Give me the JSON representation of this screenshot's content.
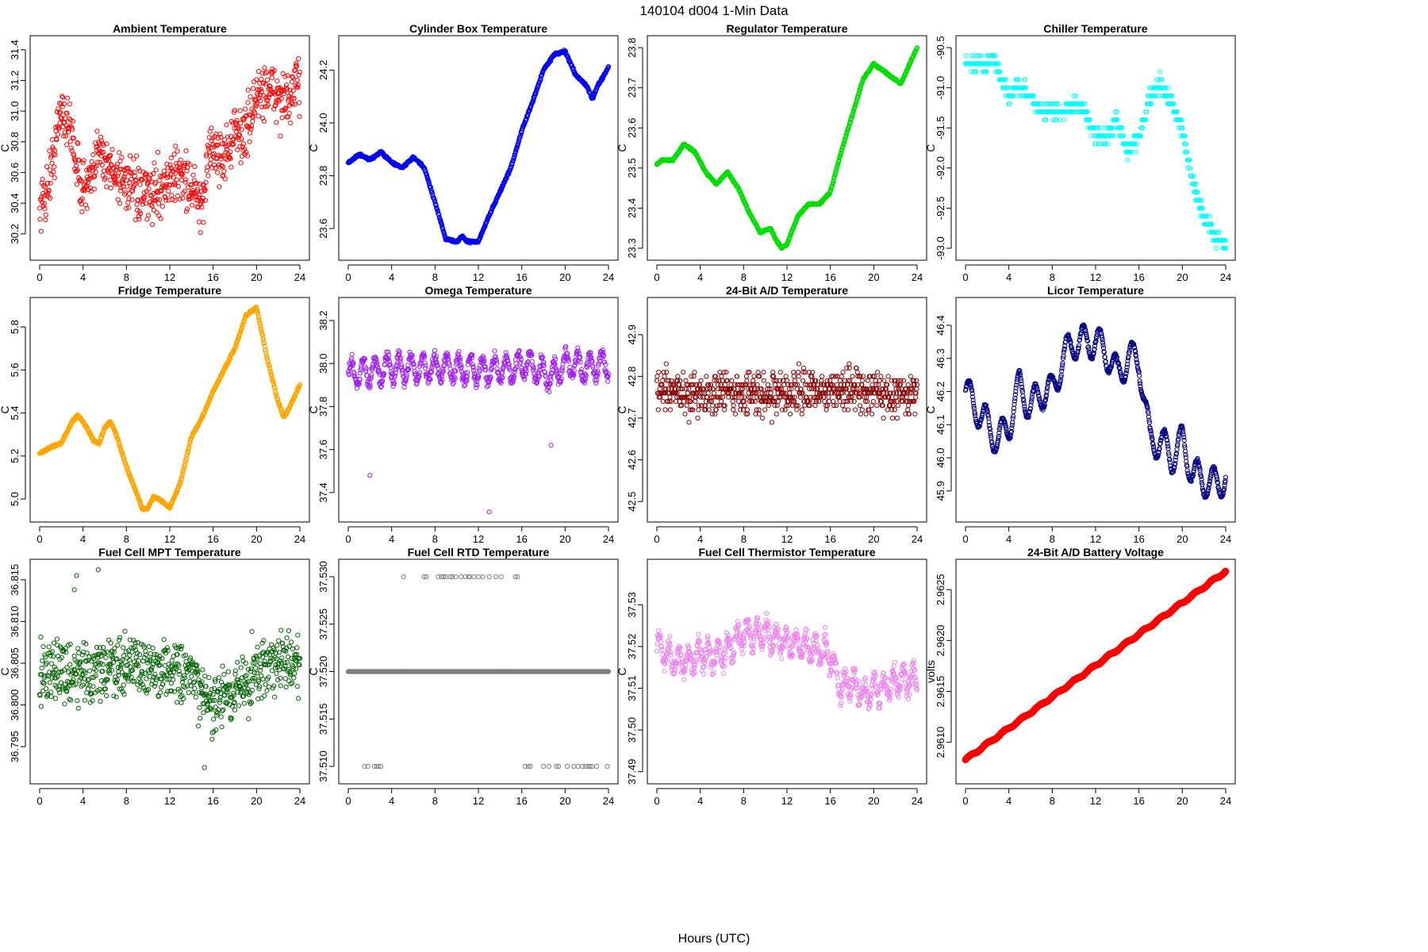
{
  "figure": {
    "title": "140104   d004   1-Min Data",
    "xlabel": "Hours (UTC)"
  },
  "chart_data": [
    {
      "type": "scatter",
      "title": "Ambient Temperature",
      "ylabel": "C",
      "color": "#ff0000",
      "xlim": [
        0,
        24
      ],
      "ylim": [
        30.08,
        31.44
      ],
      "xticks": [
        0,
        4,
        8,
        12,
        16,
        20,
        24
      ],
      "yticks": [
        30.2,
        30.4,
        30.6,
        30.8,
        31.0,
        31.2,
        31.4
      ],
      "ytick_labels": [
        "30.2",
        "30.4",
        "30.6",
        "30.8",
        "31.0",
        "31.2",
        "31.4"
      ],
      "keypoints": [
        [
          0,
          30.38
        ],
        [
          0.5,
          30.45
        ],
        [
          1,
          30.6
        ],
        [
          1.5,
          30.8
        ],
        [
          2,
          31.05
        ],
        [
          2.5,
          30.92
        ],
        [
          3,
          30.85
        ],
        [
          3.5,
          30.6
        ],
        [
          4,
          30.5
        ],
        [
          5,
          30.55
        ],
        [
          5.5,
          30.85
        ],
        [
          6,
          30.65
        ],
        [
          7,
          30.6
        ],
        [
          8,
          30.55
        ],
        [
          9,
          30.45
        ],
        [
          10,
          30.45
        ],
        [
          11,
          30.5
        ],
        [
          12,
          30.55
        ],
        [
          13,
          30.6
        ],
        [
          14,
          30.5
        ],
        [
          14.5,
          30.45
        ],
        [
          15,
          30.3
        ],
        [
          15.5,
          30.75
        ],
        [
          16,
          30.75
        ],
        [
          17,
          30.7
        ],
        [
          18,
          30.85
        ],
        [
          19,
          30.85
        ],
        [
          20,
          31.1
        ],
        [
          21,
          31.15
        ],
        [
          22,
          31.1
        ],
        [
          23,
          31.05
        ],
        [
          24,
          31.2
        ]
      ],
      "noise": 0.16,
      "wiggle": 0
    },
    {
      "type": "scatter",
      "title": "Cylinder Box Temperature",
      "ylabel": "C",
      "color": "#0000ee",
      "xlim": [
        0,
        24
      ],
      "ylim": [
        23.51,
        24.3
      ],
      "xticks": [
        0,
        4,
        8,
        12,
        16,
        20,
        24
      ],
      "yticks": [
        23.6,
        23.8,
        24.0,
        24.2
      ],
      "ytick_labels": [
        "23.6",
        "23.8",
        "24.0",
        "24.2"
      ],
      "keypoints": [
        [
          0,
          23.85
        ],
        [
          1,
          23.88
        ],
        [
          2,
          23.86
        ],
        [
          3,
          23.89
        ],
        [
          4,
          23.85
        ],
        [
          5,
          23.83
        ],
        [
          6,
          23.87
        ],
        [
          7,
          23.83
        ],
        [
          8,
          23.7
        ],
        [
          9,
          23.56
        ],
        [
          10,
          23.55
        ],
        [
          10.5,
          23.57
        ],
        [
          11,
          23.55
        ],
        [
          12,
          23.55
        ],
        [
          13,
          23.65
        ],
        [
          14,
          23.74
        ],
        [
          15,
          23.83
        ],
        [
          16,
          23.97
        ],
        [
          17,
          24.08
        ],
        [
          18,
          24.2
        ],
        [
          19,
          24.26
        ],
        [
          20,
          24.27
        ],
        [
          21,
          24.18
        ],
        [
          22,
          24.14
        ],
        [
          22.5,
          24.09
        ],
        [
          23,
          24.14
        ],
        [
          24,
          24.21
        ]
      ],
      "noise": 0.004,
      "wiggle": 0
    },
    {
      "type": "scatter",
      "title": "Regulator Temperature",
      "ylabel": "C",
      "color": "#00dd00",
      "xlim": [
        0,
        24
      ],
      "ylim": [
        23.29,
        23.81
      ],
      "xticks": [
        0,
        4,
        8,
        12,
        16,
        20,
        24
      ],
      "yticks": [
        23.3,
        23.4,
        23.5,
        23.6,
        23.7,
        23.8
      ],
      "ytick_labels": [
        "23.3",
        "23.4",
        "23.5",
        "23.6",
        "23.7",
        "23.8"
      ],
      "keypoints": [
        [
          0,
          23.51
        ],
        [
          0.5,
          23.52
        ],
        [
          1.5,
          23.52
        ],
        [
          2.5,
          23.56
        ],
        [
          3.5,
          23.54
        ],
        [
          4.5,
          23.49
        ],
        [
          5.5,
          23.46
        ],
        [
          6.5,
          23.49
        ],
        [
          7.5,
          23.45
        ],
        [
          8.5,
          23.39
        ],
        [
          9.5,
          23.34
        ],
        [
          10.5,
          23.35
        ],
        [
          11,
          23.32
        ],
        [
          11.5,
          23.3
        ],
        [
          12,
          23.31
        ],
        [
          13,
          23.38
        ],
        [
          14,
          23.41
        ],
        [
          15,
          23.41
        ],
        [
          16,
          23.44
        ],
        [
          17,
          23.54
        ],
        [
          18,
          23.63
        ],
        [
          19,
          23.72
        ],
        [
          20,
          23.76
        ],
        [
          21,
          23.74
        ],
        [
          22,
          23.72
        ],
        [
          22.5,
          23.71
        ],
        [
          23,
          23.74
        ],
        [
          24,
          23.8
        ]
      ],
      "noise": 0.002,
      "wiggle": 0
    },
    {
      "type": "scatter",
      "title": "Chiller Temperature",
      "ylabel": "C",
      "color": "#00ffff",
      "xlim": [
        0,
        24
      ],
      "ylim": [
        -93.05,
        -90.45
      ],
      "xticks": [
        0,
        4,
        8,
        12,
        16,
        20,
        24
      ],
      "yticks": [
        -93.0,
        -92.5,
        -92.0,
        -91.5,
        -91.0,
        -90.5
      ],
      "ytick_labels": [
        "-93.0",
        "-92.5",
        "-92.0",
        "-91.5",
        "-91.0",
        "-90.5"
      ],
      "keypoints": [
        [
          0,
          -90.7
        ],
        [
          2,
          -90.7
        ],
        [
          2.5,
          -90.6
        ],
        [
          3,
          -90.8
        ],
        [
          4,
          -91.1
        ],
        [
          5,
          -91.0
        ],
        [
          6,
          -91.1
        ],
        [
          7,
          -91.3
        ],
        [
          8,
          -91.3
        ],
        [
          9,
          -91.3
        ],
        [
          10,
          -91.2
        ],
        [
          11,
          -91.3
        ],
        [
          12,
          -91.6
        ],
        [
          13,
          -91.6
        ],
        [
          14,
          -91.4
        ],
        [
          15,
          -91.8
        ],
        [
          15.5,
          -91.7
        ],
        [
          16,
          -91.6
        ],
        [
          17,
          -91.1
        ],
        [
          18,
          -90.95
        ],
        [
          19,
          -91.2
        ],
        [
          20,
          -91.5
        ],
        [
          21,
          -92.2
        ],
        [
          22,
          -92.6
        ],
        [
          23,
          -92.85
        ],
        [
          24,
          -93.0
        ]
      ],
      "noise": 0.08,
      "wiggle": 0,
      "step": 0.1
    },
    {
      "type": "scatter",
      "title": "Fridge Temperature",
      "ylabel": "C",
      "color": "#ffa500",
      "xlim": [
        0,
        24
      ],
      "ylim": [
        4.93,
        5.9
      ],
      "xticks": [
        0,
        4,
        8,
        12,
        16,
        20,
        24
      ],
      "yticks": [
        5.0,
        5.2,
        5.4,
        5.6,
        5.8
      ],
      "ytick_labels": [
        "5.0",
        "5.2",
        "5.4",
        "5.6",
        "5.8"
      ],
      "keypoints": [
        [
          0,
          5.21
        ],
        [
          1,
          5.24
        ],
        [
          2,
          5.26
        ],
        [
          3,
          5.36
        ],
        [
          3.5,
          5.39
        ],
        [
          4,
          5.36
        ],
        [
          5,
          5.27
        ],
        [
          5.5,
          5.26
        ],
        [
          6,
          5.33
        ],
        [
          6.5,
          5.36
        ],
        [
          7,
          5.31
        ],
        [
          8,
          5.15
        ],
        [
          9,
          5.02
        ],
        [
          9.5,
          4.95
        ],
        [
          10,
          4.96
        ],
        [
          10.5,
          5.01
        ],
        [
          11,
          5.0
        ],
        [
          12,
          4.96
        ],
        [
          13,
          5.08
        ],
        [
          14,
          5.29
        ],
        [
          15,
          5.38
        ],
        [
          16,
          5.5
        ],
        [
          17,
          5.6
        ],
        [
          18,
          5.7
        ],
        [
          19,
          5.85
        ],
        [
          20,
          5.89
        ],
        [
          21,
          5.65
        ],
        [
          22,
          5.45
        ],
        [
          22.5,
          5.38
        ],
        [
          23,
          5.42
        ],
        [
          24,
          5.53
        ]
      ],
      "noise": 0.005,
      "wiggle": 0
    },
    {
      "type": "scatter",
      "title": "Omega Temperature",
      "ylabel": "C",
      "color": "#a020f0",
      "xlim": [
        0,
        24
      ],
      "ylim": [
        37.3,
        38.27
      ],
      "xticks": [
        0,
        4,
        8,
        12,
        16,
        20,
        24
      ],
      "yticks": [
        37.4,
        37.6,
        37.8,
        38.0,
        38.2
      ],
      "ytick_labels": [
        "37.4",
        "37.6",
        "37.8",
        "38.0",
        "38.2"
      ],
      "keypoints": [
        [
          0,
          37.95
        ],
        [
          4,
          37.98
        ],
        [
          8,
          37.98
        ],
        [
          12,
          37.97
        ],
        [
          15.5,
          37.98
        ],
        [
          16.5,
          38.0
        ],
        [
          18,
          37.95
        ],
        [
          19,
          37.95
        ],
        [
          20,
          38.0
        ],
        [
          22,
          37.98
        ],
        [
          24,
          38.0
        ]
      ],
      "noise": 0.025,
      "wiggle": 0.12,
      "wiggle_period": 1.1,
      "outliers": [
        [
          2,
          37.48
        ],
        [
          13,
          37.31
        ],
        [
          18.7,
          37.62
        ]
      ]
    },
    {
      "type": "scatter",
      "title": "24-Bit A/D Temperature",
      "ylabel": "C",
      "color": "#8b0000",
      "xlim": [
        0,
        24
      ],
      "ylim": [
        42.47,
        42.97
      ],
      "xticks": [
        0,
        4,
        8,
        12,
        16,
        20,
        24
      ],
      "yticks": [
        42.5,
        42.6,
        42.7,
        42.8,
        42.9
      ],
      "ytick_labels": [
        "42.5",
        "42.6",
        "42.7",
        "42.8",
        "42.9"
      ],
      "keypoints": [
        [
          0,
          42.76
        ],
        [
          6,
          42.76
        ],
        [
          12,
          42.76
        ],
        [
          18,
          42.77
        ],
        [
          24,
          42.75
        ]
      ],
      "noise": 0.045,
      "wiggle": 0,
      "step": 0.01
    },
    {
      "type": "scatter",
      "title": "Licor Temperature",
      "ylabel": "C",
      "color": "#000080",
      "xlim": [
        0,
        24
      ],
      "ylim": [
        45.83,
        46.46
      ],
      "xticks": [
        0,
        4,
        8,
        12,
        16,
        20,
        24
      ],
      "yticks": [
        45.9,
        46.0,
        46.1,
        46.2,
        46.3,
        46.4
      ],
      "ytick_labels": [
        "45.9",
        "46.0",
        "46.1",
        "46.2",
        "46.3",
        "46.4"
      ],
      "keypoints": [
        [
          0,
          46.2
        ],
        [
          3,
          46.05
        ],
        [
          4,
          46.1
        ],
        [
          5,
          46.22
        ],
        [
          6,
          46.15
        ],
        [
          7,
          46.2
        ],
        [
          8,
          46.2
        ],
        [
          9,
          46.3
        ],
        [
          10,
          46.35
        ],
        [
          11,
          46.35
        ],
        [
          12,
          46.35
        ],
        [
          13,
          46.32
        ],
        [
          14,
          46.25
        ],
        [
          15,
          46.3
        ],
        [
          16,
          46.3
        ],
        [
          17,
          46.05
        ],
        [
          18,
          46.05
        ],
        [
          19,
          46.0
        ],
        [
          20,
          46.05
        ],
        [
          21,
          45.95
        ],
        [
          22,
          45.93
        ],
        [
          23,
          45.92
        ],
        [
          24,
          45.94
        ]
      ],
      "noise": 0.004,
      "wiggle": 0.1,
      "wiggle_period": 1.5
    },
    {
      "type": "scatter",
      "title": "Fuel Cell MPT Temperature",
      "ylabel": "C",
      "color": "#006400",
      "xlim": [
        0,
        24
      ],
      "ylim": [
        36.7915,
        36.8165
      ],
      "xticks": [
        0,
        4,
        8,
        12,
        16,
        20,
        24
      ],
      "yticks": [
        36.795,
        36.8,
        36.805,
        36.81,
        36.815
      ],
      "ytick_labels": [
        "36.795",
        "36.800",
        "36.805",
        "36.810",
        "36.815"
      ],
      "keypoints": [
        [
          0,
          36.804
        ],
        [
          4,
          36.804
        ],
        [
          8,
          36.805
        ],
        [
          12,
          36.804
        ],
        [
          14,
          36.803
        ],
        [
          16,
          36.8
        ],
        [
          18,
          36.8015
        ],
        [
          20,
          36.804
        ],
        [
          22,
          36.806
        ],
        [
          24,
          36.804
        ]
      ],
      "noise": 0.0033,
      "wiggle": 0,
      "outliers": [
        [
          3.4,
          36.8155
        ],
        [
          5.4,
          36.8162
        ],
        [
          3.2,
          36.8138
        ],
        [
          15.2,
          36.7925
        ]
      ]
    },
    {
      "type": "scatter",
      "title": "Fuel Cell RTD Temperature",
      "ylabel": "C",
      "color": "#808080",
      "xlim": [
        0,
        24
      ],
      "ylim": [
        37.509,
        37.531
      ],
      "xticks": [
        0,
        4,
        8,
        12,
        16,
        20,
        24
      ],
      "yticks": [
        37.51,
        37.515,
        37.52,
        37.525,
        37.53
      ],
      "ytick_labels": [
        "37.510",
        "37.515",
        "37.520",
        "37.525",
        "37.530"
      ],
      "keypoints": [
        [
          0,
          37.52
        ],
        [
          24,
          37.52
        ]
      ],
      "noise": 0,
      "wiggle": 0,
      "upper_value": 37.53,
      "upper_times": [
        5.1,
        7.0,
        7.2,
        8.3,
        8.6,
        8.8,
        9.0,
        9.4,
        9.6,
        9.9,
        10.4,
        10.8,
        11.1,
        11.2,
        11.6,
        12.0,
        12.4,
        13.0,
        13.6,
        14.1,
        15.4,
        15.6
      ],
      "lower_value": 37.51,
      "lower_times": [
        1.5,
        1.8,
        2.4,
        2.6,
        2.8,
        3.0,
        16.3,
        16.6,
        16.8,
        18.0,
        18.5,
        19.2,
        19.4,
        20.2,
        20.8,
        21.2,
        21.6,
        21.9,
        22.1,
        22.3,
        22.5,
        22.9,
        23.9
      ]
    },
    {
      "type": "scatter",
      "title": "Fuel Cell Thermistor Temperature",
      "ylabel": "C",
      "color": "#ee82ee",
      "xlim": [
        0,
        24
      ],
      "ylim": [
        37.489,
        37.539
      ],
      "xticks": [
        0,
        4,
        8,
        12,
        16,
        20,
        24
      ],
      "yticks": [
        37.49,
        37.5,
        37.51,
        37.52,
        37.53
      ],
      "ytick_labels": [
        "37.49",
        "37.50",
        "37.51",
        "37.52",
        "37.53"
      ],
      "keypoints": [
        [
          0,
          37.52
        ],
        [
          2,
          37.516
        ],
        [
          4,
          37.518
        ],
        [
          6,
          37.518
        ],
        [
          8,
          37.523
        ],
        [
          10,
          37.523
        ],
        [
          12,
          37.521
        ],
        [
          14,
          37.52
        ],
        [
          16,
          37.518
        ],
        [
          17,
          37.51
        ],
        [
          18,
          37.512
        ],
        [
          19,
          37.508
        ],
        [
          20,
          37.51
        ],
        [
          21,
          37.51
        ],
        [
          22,
          37.512
        ],
        [
          24,
          37.512
        ]
      ],
      "noise": 0.002,
      "wiggle": 0.006,
      "wiggle_period": 0.9
    },
    {
      "type": "scatter",
      "title": "24-Bit A/D Battery Voltage",
      "ylabel": "volts",
      "color": "#ff0000",
      "xlim": [
        0,
        24
      ],
      "ylim": [
        2.96067,
        2.96272
      ],
      "xticks": [
        0,
        4,
        8,
        12,
        16,
        20,
        24
      ],
      "yticks": [
        2.961,
        2.9615,
        2.962,
        2.9625
      ],
      "ytick_labels": [
        "2.9610",
        "2.9615",
        "2.9620",
        "2.9625"
      ],
      "keypoints": [
        [
          0,
          2.96083
        ],
        [
          24,
          2.96268
        ]
      ],
      "noise": 4e-06,
      "wiggle": 2e-05,
      "wiggle_period": 1.6,
      "thick": true
    }
  ]
}
